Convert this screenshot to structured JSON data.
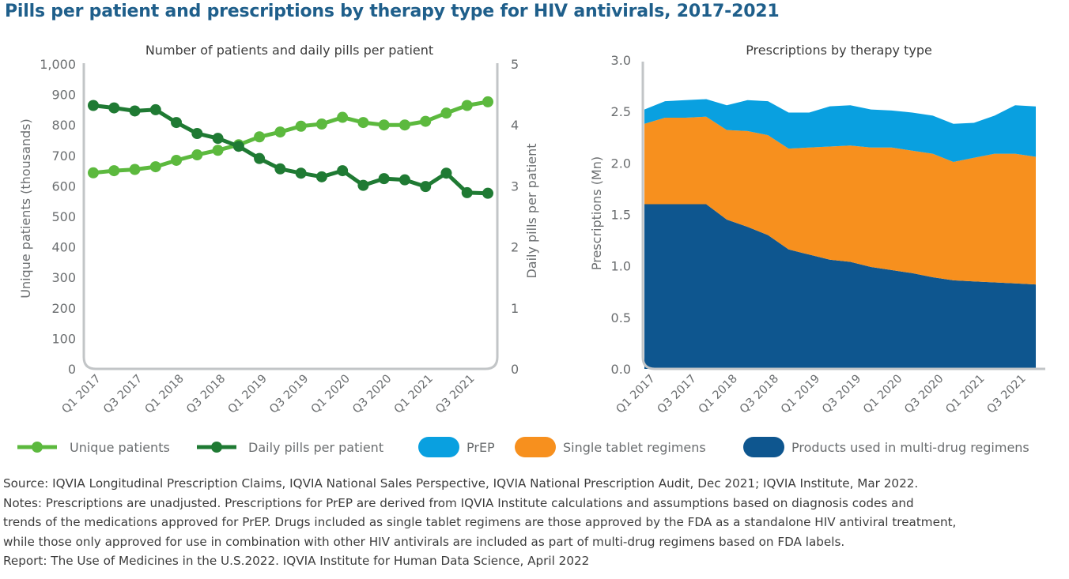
{
  "title": "Pills per patient and prescriptions by therapy type for HIV antivirals, 2017-2021",
  "chart_data": [
    {
      "type": "line",
      "title": "Number of patients and daily pills per patient",
      "x_tick_labels": [
        "Q1 2017",
        "Q3 2017",
        "Q1 2018",
        "Q3 2018",
        "Q1 2019",
        "Q3 2019",
        "Q1 2020",
        "Q3 2020",
        "Q1 2021",
        "Q3 2021"
      ],
      "x_points": 20,
      "ylabel_left": "Unique patients (thousands)",
      "ylabel_right": "Daily pills per patient",
      "ylim_left": [
        0,
        1000
      ],
      "ylim_right": [
        0,
        5
      ],
      "y_ticks_left": [
        "0",
        "100",
        "200",
        "300",
        "400",
        "500",
        "600",
        "700",
        "800",
        "900",
        "1,000"
      ],
      "y_ticks_right": [
        "0",
        "1",
        "2",
        "3",
        "4",
        "5"
      ],
      "grid": false,
      "legend_position": "bottom",
      "series": [
        {
          "name": "Unique patients",
          "axis": "left",
          "color": "#5cb93e",
          "values": [
            643,
            650,
            654,
            663,
            684,
            702,
            717,
            735,
            761,
            777,
            796,
            803,
            825,
            808,
            800,
            800,
            812,
            839,
            864,
            876
          ]
        },
        {
          "name": "Daily pills per patient",
          "axis": "right",
          "color": "#1f7a33",
          "values": [
            4.32,
            4.28,
            4.23,
            4.25,
            4.04,
            3.86,
            3.78,
            3.65,
            3.45,
            3.28,
            3.21,
            3.15,
            3.25,
            3.01,
            3.12,
            3.1,
            2.99,
            3.21,
            2.89,
            2.88
          ]
        }
      ]
    },
    {
      "type": "area",
      "stacked": true,
      "title": "Prescriptions by therapy type",
      "x_tick_labels": [
        "Q1 2017",
        "Q3 2017",
        "Q1 2018",
        "Q3 2018",
        "Q1 2019",
        "Q3 2019",
        "Q1 2020",
        "Q3 2020",
        "Q1 2021",
        "Q3 2021"
      ],
      "x_points": 20,
      "ylabel": "Prescriptions (Mn)",
      "ylim": [
        0,
        3.0
      ],
      "y_ticks": [
        "0.0",
        "0.5",
        "1.0",
        "1.5",
        "2.0",
        "2.5",
        "3.0"
      ],
      "grid": false,
      "legend_position": "bottom",
      "series": [
        {
          "name": "Products used in multi-drug regimens",
          "color": "#0e568f",
          "values": [
            1.6,
            1.6,
            1.6,
            1.6,
            1.45,
            1.38,
            1.3,
            1.16,
            1.11,
            1.06,
            1.04,
            0.99,
            0.96,
            0.93,
            0.89,
            0.86,
            0.85,
            0.84,
            0.83,
            0.82
          ]
        },
        {
          "name": "Single tablet regimens",
          "color": "#f7901e",
          "values": [
            0.78,
            0.84,
            0.84,
            0.85,
            0.87,
            0.93,
            0.97,
            0.98,
            1.04,
            1.1,
            1.13,
            1.16,
            1.19,
            1.19,
            1.2,
            1.15,
            1.2,
            1.25,
            1.26,
            1.24
          ]
        },
        {
          "name": "PrEP",
          "color": "#09a0e0",
          "values": [
            0.14,
            0.16,
            0.17,
            0.17,
            0.24,
            0.3,
            0.33,
            0.35,
            0.34,
            0.39,
            0.39,
            0.37,
            0.36,
            0.37,
            0.37,
            0.37,
            0.34,
            0.37,
            0.47,
            0.49
          ]
        }
      ]
    }
  ],
  "notes": [
    "Source: IQVIA Longitudinal Prescription Claims, IQVIA National Sales Perspective, IQVIA National Prescription Audit, Dec 2021; IQVIA Institute, Mar 2022.",
    "Notes: Prescriptions are unadjusted. Prescriptions for PrEP are derived from IQVIA Institute calculations and assumptions based on diagnosis codes and",
    "trends of the medications approved for PrEP. Drugs included as single tablet regimens are those approved by the FDA as a standalone HIV antiviral treatment,",
    "while those only approved for use in combination with other HIV antivirals are included as part of multi-drug regimens based on FDA labels.",
    "Report: The Use of Medicines in the U.S.2022. IQVIA Institute for Human Data Science, April 2022"
  ]
}
